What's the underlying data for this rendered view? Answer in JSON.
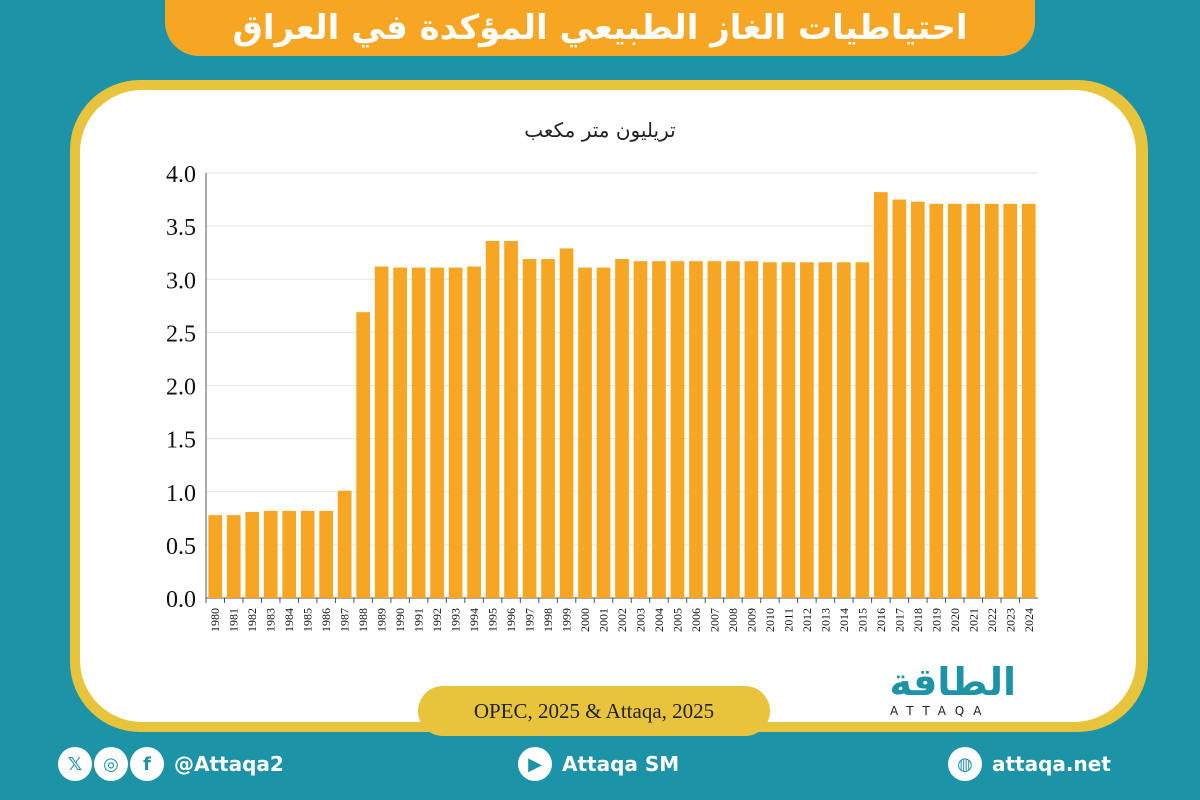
{
  "title": "احتياطيات الغاز الطبيعي المؤكدة في العراق",
  "unit_label": "تريليون متر مكعب",
  "source": "OPEC, 2025 & Attaqa, 2025",
  "logo": {
    "text": "الطاقة",
    "sub": "ATTAQA"
  },
  "footer": {
    "social_handle": "@Attaqa2",
    "youtube": "Attaqa SM",
    "website": "attaqa.net",
    "icons": [
      "x-icon",
      "instagram-icon",
      "facebook-icon",
      "youtube-icon",
      "globe-icon"
    ]
  },
  "colors": {
    "bar": "#f6a623",
    "background": "#1d93a7",
    "frame": "#e8c43d"
  },
  "chart_data": {
    "type": "bar",
    "title": "احتياطيات الغاز الطبيعي المؤكدة في العراق",
    "ylabel": "تريليون متر مكعب",
    "xlabel": "",
    "ylim": [
      0,
      4.0
    ],
    "yticks": [
      "0.0",
      "0.5",
      "1.0",
      "1.5",
      "2.0",
      "2.5",
      "3.0",
      "3.5",
      "4.0"
    ],
    "grid": true,
    "categories": [
      "1980",
      "1981",
      "1982",
      "1983",
      "1984",
      "1985",
      "1986",
      "1987",
      "1988",
      "1989",
      "1990",
      "1991",
      "1992",
      "1993",
      "1994",
      "1995",
      "1996",
      "1997",
      "1998",
      "1999",
      "2000",
      "2001",
      "2002",
      "2003",
      "2004",
      "2005",
      "2006",
      "2007",
      "2008",
      "2009",
      "2010",
      "2011",
      "2012",
      "2013",
      "2014",
      "2015",
      "2016",
      "2017",
      "2018",
      "2019",
      "2020",
      "2021",
      "2022",
      "2023",
      "2024"
    ],
    "values": [
      0.78,
      0.78,
      0.81,
      0.82,
      0.82,
      0.82,
      0.82,
      1.01,
      2.69,
      3.12,
      3.11,
      3.11,
      3.11,
      3.11,
      3.12,
      3.36,
      3.36,
      3.19,
      3.19,
      3.29,
      3.11,
      3.11,
      3.19,
      3.17,
      3.17,
      3.17,
      3.17,
      3.17,
      3.17,
      3.17,
      3.16,
      3.16,
      3.16,
      3.16,
      3.16,
      3.16,
      3.82,
      3.75,
      3.73,
      3.71,
      3.71,
      3.71,
      3.71,
      3.71,
      3.71
    ]
  }
}
